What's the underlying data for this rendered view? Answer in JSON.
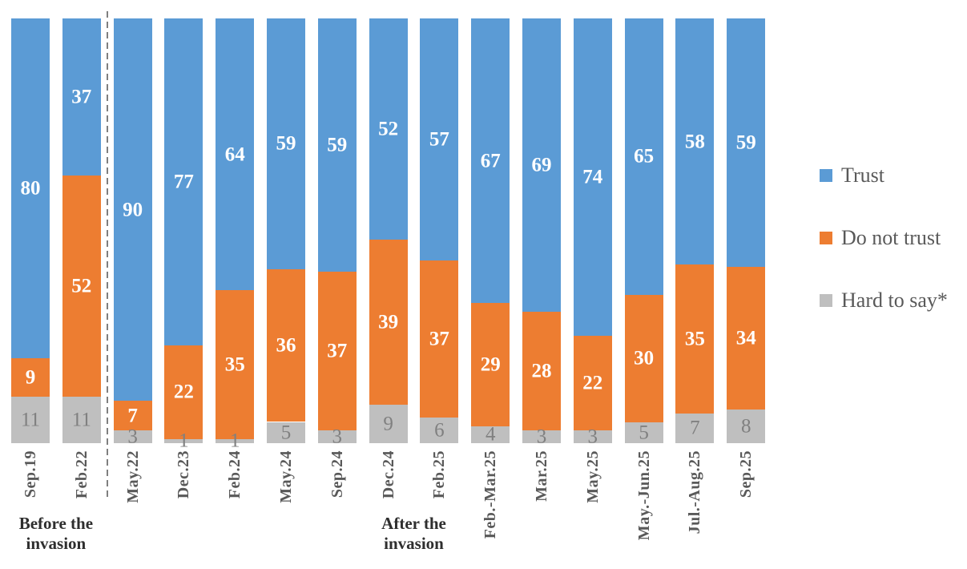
{
  "chart_data": {
    "type": "bar",
    "subtype": "stacked-percent",
    "title": "",
    "xlabel": "",
    "ylabel": "",
    "ylim": [
      0,
      100
    ],
    "grid": false,
    "y_axis_visible": false,
    "x_tick_rotation": 90,
    "categories": [
      "Sep.19",
      "Feb.22",
      "May.22",
      "Dec.23",
      "Feb.24",
      "May.24",
      "Sep.24",
      "Dec.24",
      "Feb.25",
      "Feb.-Mar.25",
      "Mar.25",
      "May.25",
      "May.-Jun.25",
      "Jul.-Aug.25",
      "Sep.25"
    ],
    "series": [
      {
        "name": "Trust",
        "color": "#5B9BD5",
        "label_color": "#FFFFFF",
        "values": [
          80,
          37,
          90,
          77,
          64,
          59,
          59,
          52,
          57,
          67,
          69,
          74,
          65,
          58,
          59
        ]
      },
      {
        "name": "Do not trust",
        "color": "#ED7D31",
        "label_color": "#FFFFFF",
        "values": [
          9,
          52,
          7,
          22,
          35,
          36,
          37,
          39,
          37,
          29,
          28,
          22,
          30,
          35,
          34
        ]
      },
      {
        "name": "Hard to say*",
        "color": "#BFBFBF",
        "label_color": "#808080",
        "values": [
          11,
          11,
          3,
          1,
          1,
          5,
          3,
          9,
          6,
          4,
          3,
          3,
          5,
          7,
          8
        ]
      }
    ],
    "stack_order_bottom_to_top": [
      "Hard to say*",
      "Do not trust",
      "Trust"
    ],
    "legend": {
      "position": "right",
      "items": [
        "Trust",
        "Do not trust",
        "Hard to say*"
      ]
    },
    "annotations": {
      "separator_after_category_index": 1,
      "separator_style": "dashed-vertical-gray",
      "group_labels": [
        {
          "text": "Before the invasion",
          "lines": [
            "Before the",
            "invasion"
          ],
          "anchor_indices": [
            0,
            1
          ]
        },
        {
          "text": "After the invasion",
          "lines": [
            "After the",
            "invasion"
          ],
          "anchor_indices": [
            7,
            8
          ]
        }
      ]
    }
  }
}
